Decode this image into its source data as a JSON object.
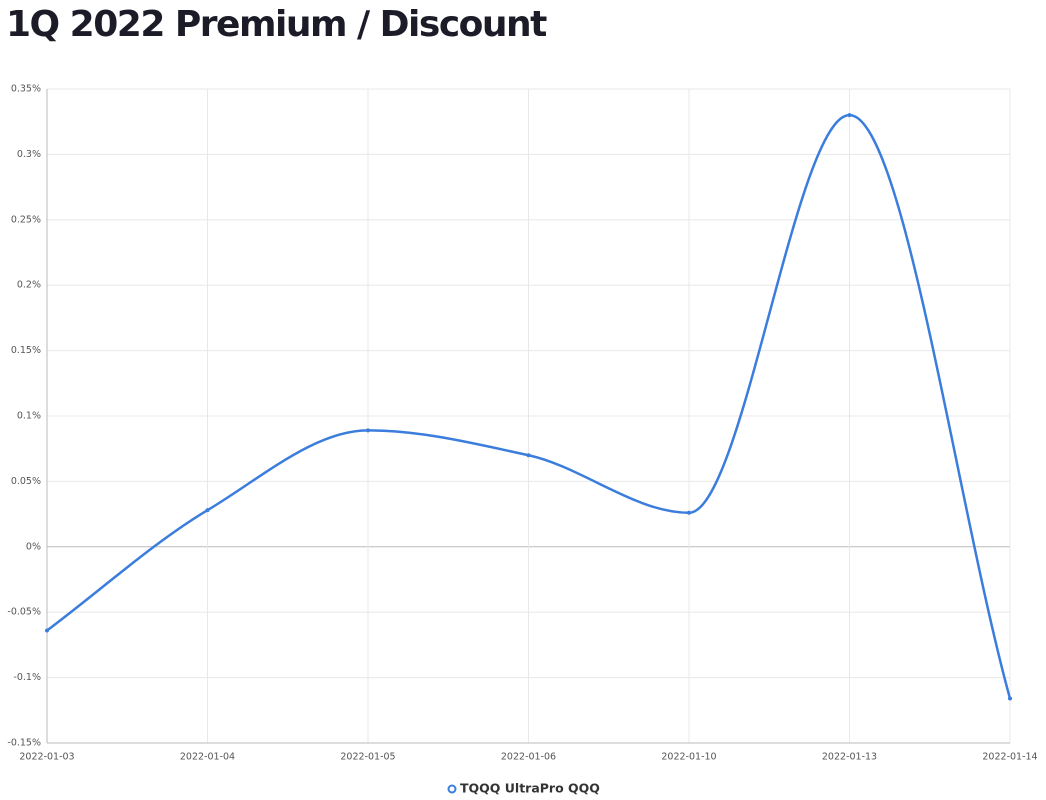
{
  "chart_data": {
    "type": "line",
    "title": "1Q 2022 Premium / Discount",
    "categories": [
      "2022-01-03",
      "2022-01-04",
      "2022-01-05",
      "2022-01-06",
      "2022-01-10",
      "2022-01-13",
      "2022-01-14"
    ],
    "series": [
      {
        "name": "TQQQ UltraPro QQQ",
        "color": "#3b7ddd",
        "values": [
          -0.064,
          0.028,
          0.089,
          0.07,
          0.026,
          0.33,
          -0.116
        ]
      }
    ],
    "ylim": [
      -0.15,
      0.35
    ],
    "yticks": [
      {
        "value": -0.15,
        "label": "-0.15%"
      },
      {
        "value": -0.1,
        "label": "-0.1%"
      },
      {
        "value": -0.05,
        "label": "-0.05%"
      },
      {
        "value": 0,
        "label": "0%"
      },
      {
        "value": 0.05,
        "label": "0.05%"
      },
      {
        "value": 0.1,
        "label": "0.1%"
      },
      {
        "value": 0.15,
        "label": "0.15%"
      },
      {
        "value": 0.2,
        "label": "0.2%"
      },
      {
        "value": 0.25,
        "label": "0.25%"
      },
      {
        "value": 0.3,
        "label": "0.3%"
      },
      {
        "value": 0.35,
        "label": "0.35%"
      }
    ],
    "grid": true
  }
}
